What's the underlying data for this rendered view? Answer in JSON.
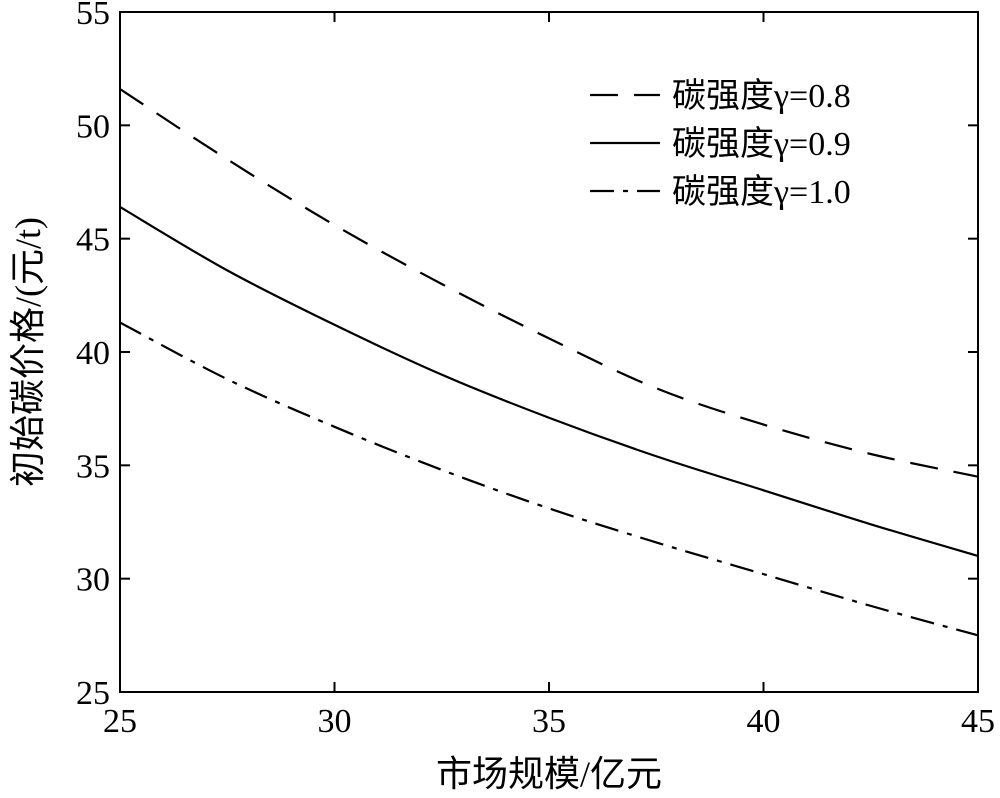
{
  "chart_data": {
    "type": "line",
    "xlabel": "市场规模/亿元",
    "ylabel": "初始碳价格/(元/t)",
    "xlim": [
      25,
      45
    ],
    "ylim": [
      25,
      55
    ],
    "xticks": [
      25,
      30,
      35,
      40,
      45
    ],
    "yticks": [
      25,
      30,
      35,
      40,
      45,
      50,
      55
    ],
    "grid": false,
    "legend_position": "top-right",
    "x": [
      25,
      27.5,
      30,
      32.5,
      35,
      37.5,
      40,
      42.5,
      45
    ],
    "series": [
      {
        "name": "碳强度γ=0.8",
        "line_style": "dashed",
        "values": [
          51.6,
          48.5,
          45.6,
          43.0,
          40.6,
          38.4,
          36.8,
          35.5,
          34.5
        ]
      },
      {
        "name": "碳强度γ=0.9",
        "line_style": "solid",
        "values": [
          46.4,
          43.6,
          41.2,
          39.0,
          37.1,
          35.4,
          33.9,
          32.4,
          31.0
        ]
      },
      {
        "name": "碳强度γ=1.0",
        "line_style": "dashdot",
        "values": [
          41.3,
          38.8,
          36.7,
          34.8,
          33.1,
          31.6,
          30.2,
          28.8,
          27.5
        ]
      }
    ],
    "colors": {
      "line": "#000000",
      "axis": "#000000",
      "background": "#ffffff"
    }
  }
}
